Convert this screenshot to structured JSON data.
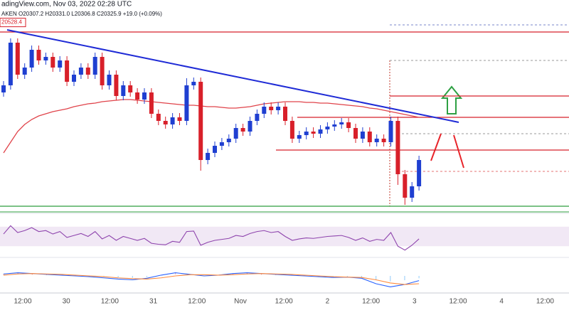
{
  "chart_data": {
    "type": "candlestick",
    "title": "adingView.com, Nov 03, 2022 02:28 UTC",
    "subtitle": "AKEN  O20307.2  H20331.0  L20306.8  C20325.9  +19.0 (+0.09%)",
    "price_label": "20528.4",
    "price_label_value": 20528.4,
    "ylim": [
      20260,
      20550
    ],
    "up_color": "#1f3fd1",
    "down_color": "#d8202a",
    "x_labels": [
      "12:00",
      "30",
      "12:00",
      "31",
      "12:00",
      "Nov",
      "12:00",
      "2",
      "12:00",
      "3",
      "12:00",
      "4",
      "12:00"
    ],
    "open": [
      20430,
      20440,
      20500,
      20455,
      20465,
      20490,
      20475,
      20480,
      20465,
      20475,
      20445,
      20455,
      20465,
      20455,
      20480,
      20440,
      20455,
      20425,
      20440,
      20430,
      20420,
      20430,
      20400,
      20390,
      20385,
      20395,
      20390,
      20440,
      20445,
      20335,
      20345,
      20355,
      20360,
      20365,
      20380,
      20375,
      20390,
      20400,
      20410,
      20405,
      20410,
      20390,
      20365,
      20370,
      20375,
      20372,
      20378,
      20382,
      20385,
      20388,
      20380,
      20365,
      20375,
      20360,
      20365,
      20360,
      20390,
      20315,
      20282,
      20298
    ],
    "high": [
      20446,
      20506,
      20506,
      20471,
      20496,
      20496,
      20486,
      20486,
      20481,
      20481,
      20461,
      20471,
      20471,
      20486,
      20486,
      20461,
      20461,
      20446,
      20446,
      20436,
      20436,
      20436,
      20406,
      20396,
      20401,
      20401,
      20450,
      20451,
      20451,
      20351,
      20361,
      20366,
      20371,
      20386,
      20386,
      20396,
      20406,
      20416,
      20416,
      20416,
      20416,
      20396,
      20376,
      20381,
      20381,
      20384,
      20388,
      20391,
      20394,
      20394,
      20386,
      20381,
      20381,
      20371,
      20371,
      20396,
      20396,
      20321,
      20304,
      20341
    ],
    "low": [
      20424,
      20434,
      20449,
      20449,
      20459,
      20469,
      20469,
      20459,
      20459,
      20439,
      20439,
      20449,
      20449,
      20449,
      20434,
      20434,
      20419,
      20419,
      20424,
      20414,
      20414,
      20394,
      20384,
      20379,
      20379,
      20384,
      20384,
      20434,
      20320,
      20329,
      20339,
      20349,
      20354,
      20359,
      20369,
      20369,
      20384,
      20394,
      20399,
      20399,
      20384,
      20359,
      20359,
      20364,
      20366,
      20366,
      20372,
      20376,
      20379,
      20374,
      20359,
      20359,
      20354,
      20354,
      20354,
      20354,
      20300,
      20272,
      20276,
      20292
    ],
    "close": [
      20440,
      20500,
      20455,
      20465,
      20490,
      20475,
      20480,
      20465,
      20475,
      20445,
      20455,
      20465,
      20455,
      20480,
      20440,
      20455,
      20425,
      20440,
      20430,
      20420,
      20430,
      20400,
      20390,
      20385,
      20395,
      20390,
      20440,
      20445,
      20335,
      20345,
      20355,
      20360,
      20365,
      20380,
      20375,
      20390,
      20400,
      20410,
      20405,
      20410,
      20390,
      20365,
      20370,
      20375,
      20372,
      20378,
      20382,
      20385,
      20388,
      20380,
      20365,
      20375,
      20360,
      20365,
      20360,
      20390,
      20315,
      20282,
      20298,
      20335
    ],
    "ma": {
      "color": "#e0434a",
      "values": [
        20345,
        20360,
        20375,
        20385,
        20392,
        20397,
        20400,
        20403,
        20405,
        20407,
        20410,
        20412,
        20414,
        20415,
        20417,
        20418,
        20419,
        20420,
        20420,
        20419,
        20418,
        20417,
        20416,
        20415,
        20414,
        20413,
        20412,
        20412,
        20411,
        20410,
        20410,
        20409,
        20408,
        20408,
        20409,
        20410,
        20412,
        20414,
        20415,
        20416,
        20417,
        20417,
        20417,
        20416,
        20416,
        20415,
        20415,
        20414,
        20413,
        20412,
        20411,
        20410,
        20408,
        20407,
        20405,
        20403,
        20401,
        20399,
        20397,
        20395
      ]
    },
    "trendline": {
      "color": "#1f2bd6",
      "start": 20518,
      "end": 20388
    },
    "levels": [
      {
        "value": 20515,
        "color": "#d8202a",
        "full": true
      },
      {
        "value": 20425,
        "color": "#d8202a",
        "full": false
      },
      {
        "value": 20395,
        "color": "#d8202a",
        "full": false
      },
      {
        "value": 20349,
        "color": "#d8202a",
        "full": false
      },
      {
        "value": 20270,
        "color": "#2e9e3e",
        "full": true
      }
    ],
    "rsi": {
      "color": "#8e44ad",
      "ylim": [
        10,
        90
      ],
      "band": [
        30,
        70
      ],
      "values": [
        55,
        72,
        58,
        62,
        68,
        60,
        62,
        55,
        60,
        48,
        52,
        56,
        50,
        60,
        45,
        52,
        42,
        50,
        46,
        42,
        46,
        36,
        34,
        33,
        40,
        38,
        60,
        61,
        32,
        38,
        42,
        44,
        46,
        52,
        50,
        56,
        60,
        62,
        58,
        60,
        50,
        42,
        45,
        47,
        46,
        48,
        50,
        51,
        52,
        48,
        42,
        47,
        40,
        44,
        42,
        58,
        30,
        22,
        32,
        45
      ]
    },
    "macd": {
      "ylim": [
        -40,
        40
      ],
      "series": [
        {
          "color": "#2962ff",
          "values": [
            5,
            8,
            6,
            4,
            2,
            0,
            -2,
            -5,
            -8,
            -10,
            -6,
            2,
            8,
            4,
            0,
            2,
            6,
            8,
            6,
            4,
            2,
            0,
            -2,
            -4,
            -3,
            -6,
            -20,
            -28,
            -22,
            -12
          ]
        },
        {
          "color": "#ff8a3d",
          "values": [
            2,
            5,
            6,
            5,
            4,
            2,
            0,
            -2,
            -5,
            -7,
            -8,
            -5,
            0,
            3,
            3,
            2,
            3,
            5,
            6,
            5,
            4,
            2,
            0,
            -2,
            -3,
            -4,
            -10,
            -18,
            -22,
            -20
          ]
        }
      ]
    }
  }
}
